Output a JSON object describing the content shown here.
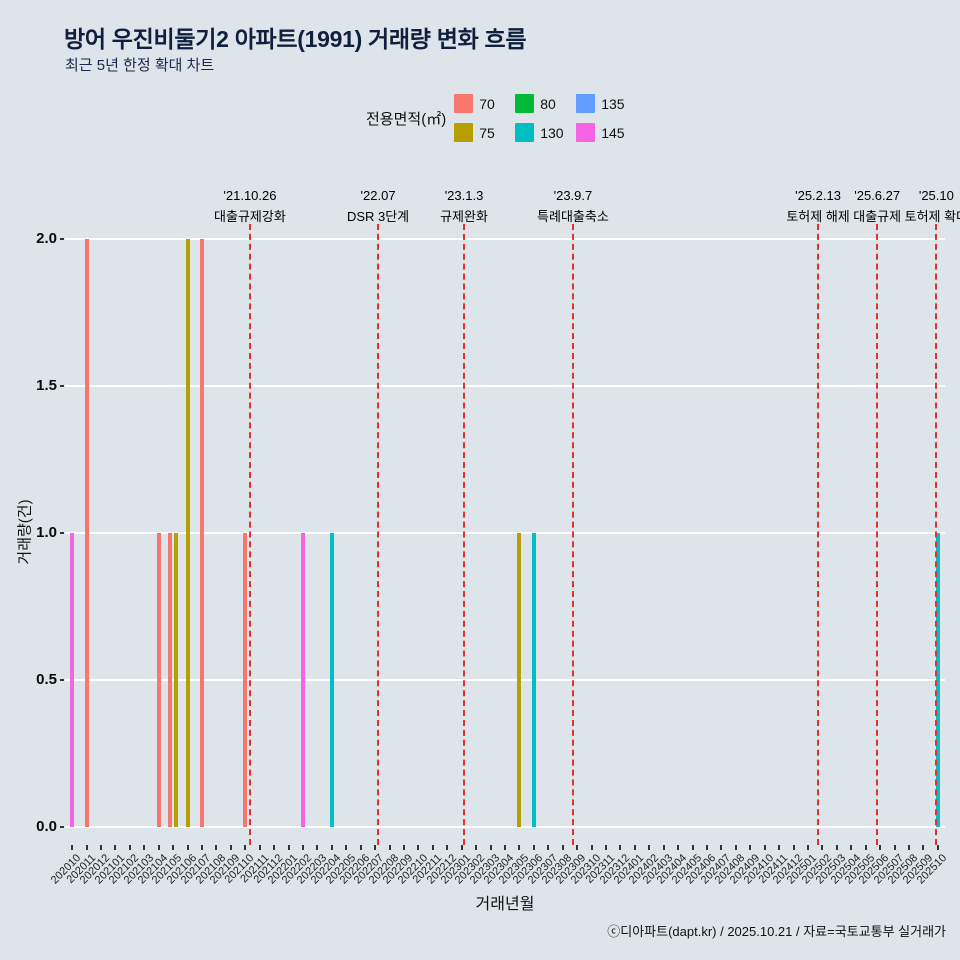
{
  "page": {
    "title": "방어 우진비둘기2 아파트(1991) 거래량 변화 흐름",
    "subtitle": "최근 5년 한정 확대 차트",
    "footer": "ⓒ디아파트(dapt.kr) / 2025.10.21 / 자료=국토교통부 실거래가"
  },
  "legend": {
    "title": "전용면적(㎡)",
    "items": [
      {
        "label": "70",
        "color": "#F8766D"
      },
      {
        "label": "75",
        "color": "#B79F00"
      },
      {
        "label": "80",
        "color": "#00BA38"
      },
      {
        "label": "130",
        "color": "#00BFC4"
      },
      {
        "label": "135",
        "color": "#619CFF"
      },
      {
        "label": "145",
        "color": "#F564E3"
      }
    ]
  },
  "chart_data": {
    "type": "bar",
    "title": "방어 우진비둘기2 아파트(1991) 거래량 변화 흐름",
    "xlabel": "거래년월",
    "ylabel": "거래량(건)",
    "ylim": [
      0,
      2
    ],
    "yticks": [
      "0.0",
      "0.5",
      "1.0",
      "1.5",
      "2.0"
    ],
    "grid": "horizontal-white-major",
    "legend_position": "top",
    "categories": [
      "202010",
      "202011",
      "202012",
      "202101",
      "202102",
      "202103",
      "202104",
      "202105",
      "202106",
      "202107",
      "202108",
      "202109",
      "202110",
      "202111",
      "202112",
      "202201",
      "202202",
      "202203",
      "202204",
      "202205",
      "202206",
      "202207",
      "202208",
      "202209",
      "202210",
      "202211",
      "202212",
      "202301",
      "202302",
      "202303",
      "202304",
      "202305",
      "202306",
      "202307",
      "202308",
      "202309",
      "202310",
      "202311",
      "202312",
      "202401",
      "202402",
      "202403",
      "202404",
      "202405",
      "202406",
      "202407",
      "202408",
      "202409",
      "202410",
      "202411",
      "202412",
      "202501",
      "202502",
      "202503",
      "202504",
      "202505",
      "202506",
      "202507",
      "202508",
      "202509",
      "202510"
    ],
    "series_colors": {
      "70": "#F8766D",
      "75": "#B79F00",
      "80": "#00BA38",
      "130": "#00BFC4",
      "135": "#619CFF",
      "145": "#F564E3"
    },
    "bars": [
      {
        "month": "202010",
        "area": "145",
        "count": 1
      },
      {
        "month": "202011",
        "area": "70",
        "count": 2
      },
      {
        "month": "202104",
        "area": "70",
        "count": 1
      },
      {
        "month": "202105",
        "area": "70",
        "count": 1
      },
      {
        "month": "202105",
        "area": "75",
        "count": 1
      },
      {
        "month": "202106",
        "area": "75",
        "count": 2
      },
      {
        "month": "202107",
        "area": "70",
        "count": 2
      },
      {
        "month": "202110",
        "area": "70",
        "count": 1
      },
      {
        "month": "202202",
        "area": "145",
        "count": 1
      },
      {
        "month": "202204",
        "area": "130",
        "count": 1
      },
      {
        "month": "202305",
        "area": "75",
        "count": 1
      },
      {
        "month": "202306",
        "area": "130",
        "count": 1
      },
      {
        "month": "202510",
        "area": "130",
        "count": 1
      }
    ],
    "event_line_color": "#e43030",
    "events": [
      {
        "date": "'21.10.26",
        "label": "대출규제강화",
        "month_pos": 12.82
      },
      {
        "date": "'22.07",
        "label": "DSR 3단계",
        "month_pos": 21.7
      },
      {
        "date": "'23.1.3",
        "label": "규제완화",
        "month_pos": 27.66
      },
      {
        "date": "'23.9.7",
        "label": "특례대출축소",
        "month_pos": 35.21
      },
      {
        "date": "'25.2.13",
        "label": "토허제 해제",
        "month_pos": 52.2
      },
      {
        "date": "'25.6.27",
        "label": "대출규제",
        "month_pos": 56.3
      },
      {
        "date": "'25.10",
        "label": "토허제 확대",
        "month_pos": 60.4
      }
    ]
  }
}
